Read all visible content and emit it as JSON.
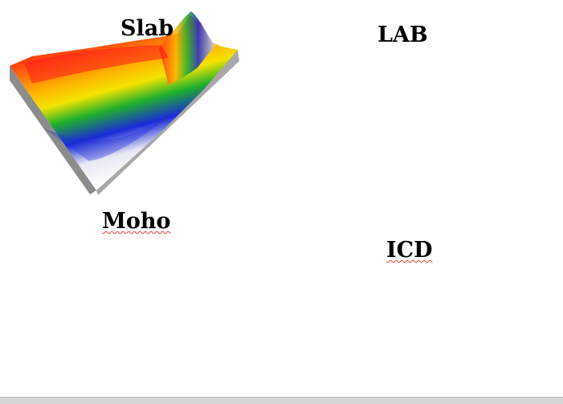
{
  "panels": [
    {
      "id": "slab",
      "label": "Slab",
      "squiggle": false
    },
    {
      "id": "lab",
      "label": "LAB",
      "squiggle": false
    },
    {
      "id": "moho",
      "label": "Moho",
      "squiggle": true
    },
    {
      "id": "icd",
      "label": "ICD",
      "squiggle": true
    }
  ],
  "colors": {
    "box_side": "#8c8c8c",
    "box_side_light": "#bdbdbd",
    "background": "#ffffff"
  }
}
